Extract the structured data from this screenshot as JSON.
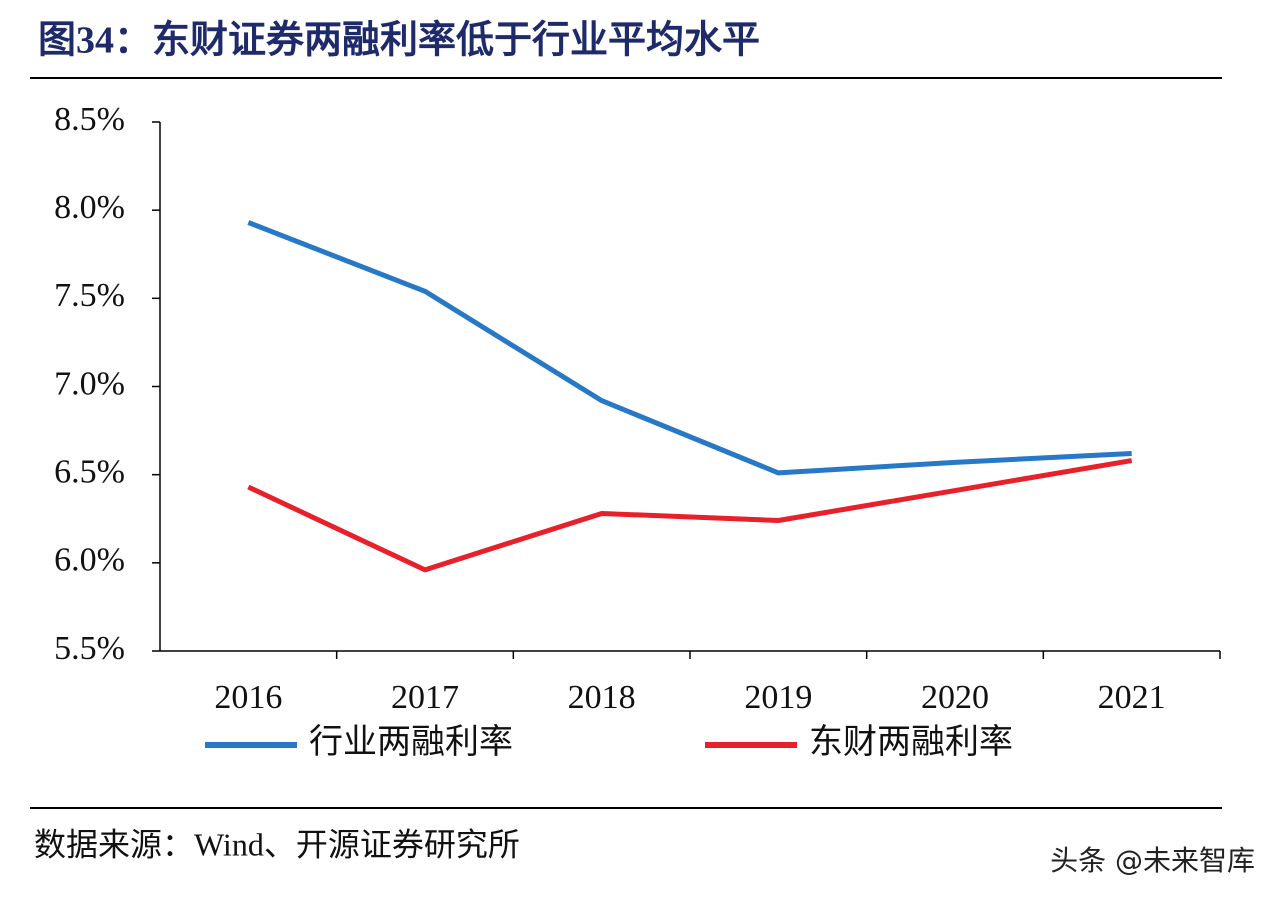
{
  "chart_data": {
    "type": "line",
    "title": "图34：东财证券两融利率低于行业平均水平",
    "categories": [
      "2016",
      "2017",
      "2018",
      "2019",
      "2020",
      "2021"
    ],
    "series": [
      {
        "name": "行业两融利率",
        "color": "#2878c8",
        "values": [
          7.93,
          7.54,
          6.92,
          6.51,
          6.57,
          6.62
        ]
      },
      {
        "name": "东财两融利率",
        "color": "#e8202a",
        "values": [
          6.43,
          5.96,
          6.28,
          6.24,
          6.41,
          6.58
        ]
      }
    ],
    "ylim": [
      5.5,
      8.5
    ],
    "yticks": [
      {
        "value": 5.5,
        "label": "5.5%"
      },
      {
        "value": 6.0,
        "label": "6.0%"
      },
      {
        "value": 6.5,
        "label": "6.5%"
      },
      {
        "value": 7.0,
        "label": "7.0%"
      },
      {
        "value": 7.5,
        "label": "7.5%"
      },
      {
        "value": 8.0,
        "label": "8.0%"
      },
      {
        "value": 8.5,
        "label": "8.5%"
      }
    ],
    "grid": false,
    "legend": "bottom",
    "source": "数据来源：Wind、开源证券研究所",
    "watermark": "头条 @未来智库"
  }
}
